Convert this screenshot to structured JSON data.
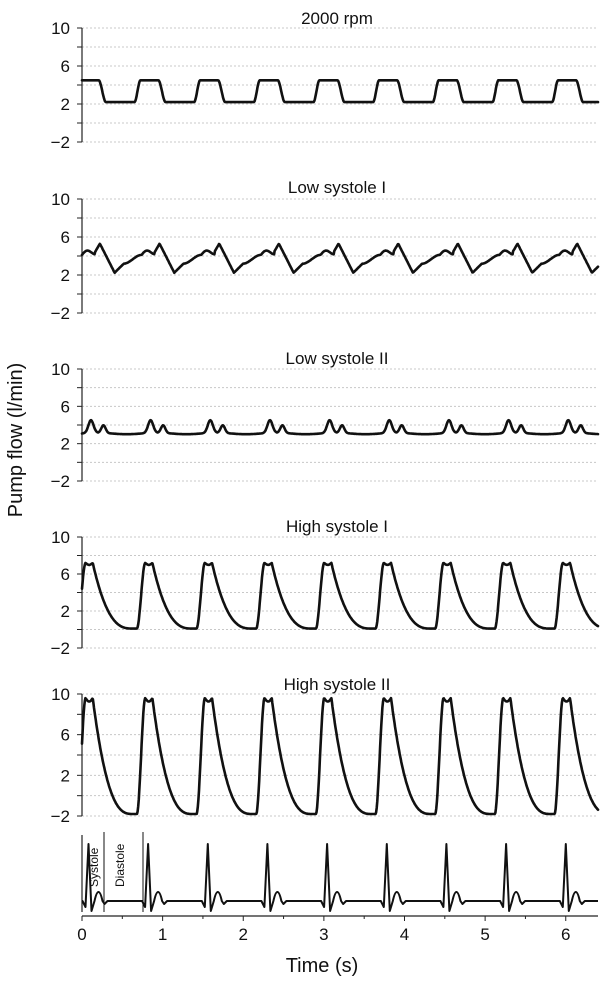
{
  "chart_data": [
    {
      "type": "line",
      "title": "2000 rpm",
      "ylabel": "Pump flow (l/min)",
      "ylim": [
        -2,
        10
      ],
      "yticks": [
        "10",
        "6",
        "2",
        "−2"
      ],
      "grid": true,
      "series": [
        {
          "min": 2.2,
          "max": 4.5,
          "period_s": 0.74,
          "shape": "trapezoid"
        }
      ]
    },
    {
      "type": "line",
      "title": "Low systole I",
      "ylabel": "Pump flow (l/min)",
      "ylim": [
        -2,
        10
      ],
      "yticks": [
        "10",
        "6",
        "2",
        "−2"
      ],
      "grid": true,
      "series": [
        {
          "min": 2.2,
          "max": 5.3,
          "period_s": 0.74,
          "shape": "sawtooth"
        }
      ]
    },
    {
      "type": "line",
      "title": "Low systole II",
      "ylabel": "Pump flow (l/min)",
      "ylim": [
        -2,
        10
      ],
      "yticks": [
        "10",
        "6",
        "2",
        "−2"
      ],
      "grid": true,
      "series": [
        {
          "min": 2.9,
          "max": 4.5,
          "period_s": 0.74,
          "shape": "double-bump"
        }
      ]
    },
    {
      "type": "line",
      "title": "High systole I",
      "ylabel": "Pump flow (l/min)",
      "ylim": [
        -2,
        10
      ],
      "yticks": [
        "10",
        "6",
        "2",
        "−2"
      ],
      "grid": true,
      "series": [
        {
          "min": 0.1,
          "max": 7.2,
          "period_s": 0.74,
          "shape": "pulse"
        }
      ]
    },
    {
      "type": "line",
      "title": "High systole II",
      "ylabel": "Pump flow (l/min)",
      "ylim": [
        -2,
        10
      ],
      "yticks": [
        "10",
        "6",
        "2",
        "−2"
      ],
      "grid": true,
      "series": [
        {
          "min": -1.8,
          "max": 9.6,
          "period_s": 0.74,
          "shape": "pulse"
        }
      ]
    },
    {
      "type": "line",
      "title": "",
      "ylabel": "",
      "xlabel": "Time (s)",
      "xlim": [
        0,
        6.4
      ],
      "xticks": [
        "0",
        "1",
        "2",
        "3",
        "4",
        "5",
        "6"
      ],
      "annotations": [
        "Systole",
        "Diastole"
      ],
      "series": [
        {
          "shape": "ecg",
          "period_s": 0.74
        }
      ]
    }
  ],
  "y_axis_title": "Pump flow (l/min)",
  "x_axis_title": "Time (s)"
}
